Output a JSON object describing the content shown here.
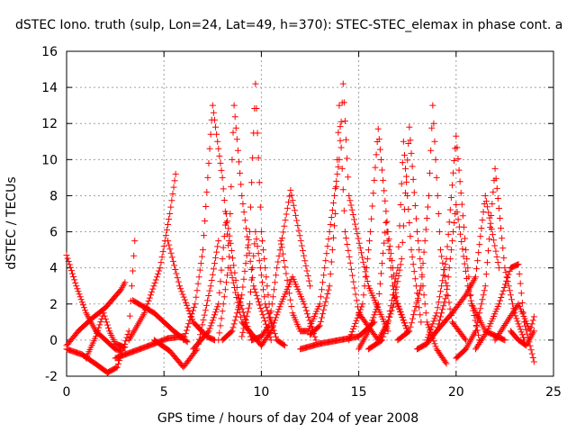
{
  "chart_data": {
    "type": "scatter",
    "title": "dSTEC Iono. truth (sulp, Lon=24, Lat=49, h=370): STEC-STEC_elemax in phase cont. a",
    "xlabel": "GPS time / hours of day 204 of year 2008",
    "ylabel": "dSTEC  / TECUs",
    "xlim": [
      0,
      25
    ],
    "ylim": [
      -2,
      16
    ],
    "x_ticks": [
      "0",
      "5",
      "10",
      "15",
      "20",
      "25"
    ],
    "y_ticks": [
      "-2",
      "0",
      "2",
      "4",
      "6",
      "8",
      "10",
      "12",
      "14",
      "16"
    ],
    "grid": true,
    "marker": "+",
    "color": "#ff0000",
    "series": [
      {
        "x": [
          0.0,
          0.5,
          1.0,
          1.5,
          2.0,
          2.5,
          2.8
        ],
        "y": [
          4.7,
          3.0,
          1.5,
          0.5,
          0.0,
          -0.5,
          -0.6
        ]
      },
      {
        "x": [
          0.0,
          0.8,
          1.6,
          2.1,
          2.6,
          3.2,
          3.5
        ],
        "y": [
          -0.5,
          -0.8,
          -1.4,
          -1.8,
          -1.5,
          0.5,
          5.5
        ]
      },
      {
        "x": [
          0.0,
          0.6,
          1.3,
          2.0,
          2.8,
          3.0
        ],
        "y": [
          -0.3,
          0.5,
          1.2,
          1.8,
          2.8,
          3.2
        ]
      },
      {
        "x": [
          1.0,
          1.5,
          1.9,
          2.2,
          2.5,
          3.0
        ],
        "y": [
          -1.0,
          0.2,
          1.5,
          0.5,
          -0.2,
          -0.4
        ]
      },
      {
        "x": [
          2.5,
          3.5,
          4.5,
          5.2,
          6.0
        ],
        "y": [
          -1.0,
          -0.6,
          -0.2,
          0.1,
          0.2
        ]
      },
      {
        "x": [
          3.4,
          4.5,
          5.5,
          6.2
        ],
        "y": [
          2.2,
          1.5,
          0.5,
          -0.1
        ]
      },
      {
        "x": [
          3.2,
          4.0,
          4.8,
          5.3,
          5.6
        ],
        "y": [
          0.0,
          1.5,
          4.0,
          7.0,
          9.2
        ]
      },
      {
        "x": [
          4.5,
          5.3,
          6.0,
          6.7,
          7.4,
          7.8
        ],
        "y": [
          0.0,
          -0.6,
          -1.5,
          -0.5,
          3.0,
          5.5
        ]
      },
      {
        "x": [
          5.2,
          5.8,
          6.5,
          7.2,
          7.6
        ],
        "y": [
          5.5,
          3.0,
          1.0,
          0.2,
          0.0
        ]
      },
      {
        "x": [
          6.0,
          6.6,
          7.0,
          7.5,
          8.0,
          8.4,
          9.0,
          10.0
        ],
        "y": [
          0.0,
          2.0,
          5.0,
          13.0,
          9.0,
          4.0,
          1.0,
          -0.3
        ]
      },
      {
        "x": [
          6.5,
          7.3,
          7.8,
          8.2,
          8.8,
          9.5
        ],
        "y": [
          -0.5,
          0.5,
          2.0,
          7.0,
          2.5,
          0.0
        ]
      },
      {
        "x": [
          7.8,
          8.3,
          8.6,
          9.0,
          9.6,
          10.5
        ],
        "y": [
          0.0,
          4.0,
          13.0,
          8.0,
          3.0,
          0.0
        ]
      },
      {
        "x": [
          8.0,
          8.5,
          9.0,
          9.4,
          9.7,
          10.0,
          10.5
        ],
        "y": [
          0.0,
          0.5,
          2.5,
          6.0,
          14.2,
          6.0,
          1.0
        ]
      },
      {
        "x": [
          9.0,
          9.4,
          9.7,
          10.2,
          10.8,
          11.2
        ],
        "y": [
          0.2,
          2.0,
          6.0,
          2.0,
          0.0,
          -0.3
        ]
      },
      {
        "x": [
          9.5,
          10.0,
          10.4,
          10.8,
          11.5,
          12.5
        ],
        "y": [
          0.0,
          0.2,
          0.8,
          4.0,
          8.3,
          3.0
        ]
      },
      {
        "x": [
          10.0,
          10.5,
          11.0,
          11.6,
          12.2,
          12.8
        ],
        "y": [
          -0.3,
          0.5,
          2.0,
          3.5,
          2.0,
          0.0
        ]
      },
      {
        "x": [
          11.0,
          11.6,
          12.0,
          12.4,
          13.0,
          13.5,
          14.0,
          14.2,
          14.5,
          15.5,
          16.5
        ],
        "y": [
          5.5,
          1.5,
          0.5,
          0.5,
          2.0,
          6.0,
          10.0,
          14.2,
          8.0,
          3.0,
          0.5
        ]
      },
      {
        "x": [
          12.5,
          13.0,
          13.5,
          13.8,
          14.0,
          14.3,
          15.0,
          16.0
        ],
        "y": [
          0.3,
          0.8,
          3.0,
          7.0,
          13.0,
          6.0,
          1.5,
          0.0
        ]
      },
      {
        "x": [
          12.0,
          13.0,
          14.0,
          15.0,
          15.8
        ],
        "y": [
          -0.5,
          -0.2,
          0.0,
          0.2,
          1.0
        ]
      },
      {
        "x": [
          14.5,
          15.2,
          15.6,
          16.0,
          16.5,
          17.0,
          17.5
        ],
        "y": [
          0.0,
          2.0,
          6.0,
          11.7,
          6.0,
          2.0,
          0.5
        ]
      },
      {
        "x": [
          15.0,
          15.5,
          16.0,
          16.4,
          16.8,
          17.5
        ],
        "y": [
          -0.5,
          0.5,
          2.0,
          6.5,
          2.5,
          0.5
        ]
      },
      {
        "x": [
          15.5,
          16.2,
          16.8,
          17.2,
          17.6,
          18.0,
          18.5,
          19.0,
          19.5
        ],
        "y": [
          -0.5,
          0.0,
          2.0,
          4.5,
          11.8,
          6.0,
          1.0,
          -0.5,
          -1.3
        ]
      },
      {
        "x": [
          16.0,
          16.5,
          17.0,
          17.3,
          17.7,
          18.2
        ],
        "y": [
          0.0,
          1.0,
          4.0,
          11.0,
          5.0,
          1.0
        ]
      },
      {
        "x": [
          17.0,
          17.6,
          18.2,
          18.6,
          18.8,
          19.2,
          19.8,
          20.5
        ],
        "y": [
          0.0,
          0.5,
          3.0,
          8.0,
          13.0,
          5.0,
          1.0,
          0.0
        ]
      },
      {
        "x": [
          18.0,
          18.5,
          19.0,
          19.5,
          20.0,
          20.6,
          21.2
        ],
        "y": [
          -0.5,
          -0.2,
          0.5,
          2.5,
          7.5,
          3.0,
          0.0
        ]
      },
      {
        "x": [
          18.5,
          19.0,
          19.5,
          20.0,
          20.5,
          20.8,
          21.5,
          22.5
        ],
        "y": [
          0.0,
          1.5,
          4.5,
          11.3,
          5.0,
          2.0,
          0.5,
          0.0
        ]
      },
      {
        "x": [
          19.0,
          19.8,
          20.5,
          21.0,
          21.5,
          22.2
        ],
        "y": [
          0.5,
          1.5,
          2.5,
          3.5,
          8.0,
          4.0
        ]
      },
      {
        "x": [
          20.0,
          20.5,
          21.0,
          21.5,
          22.0,
          22.5,
          23.0,
          23.5
        ],
        "y": [
          -1.0,
          -0.5,
          0.5,
          3.0,
          9.5,
          4.0,
          1.5,
          0.0
        ]
      },
      {
        "x": [
          21.0,
          21.6,
          22.2,
          22.8,
          23.2,
          23.5,
          24.0
        ],
        "y": [
          -0.5,
          0.5,
          2.0,
          4.0,
          4.2,
          1.0,
          -1.2
        ]
      },
      {
        "x": [
          22.0,
          22.6,
          23.2,
          23.8,
          24.0
        ],
        "y": [
          0.0,
          1.0,
          2.0,
          0.5,
          1.3
        ]
      },
      {
        "x": [
          22.8,
          23.2,
          23.6,
          24.0
        ],
        "y": [
          0.5,
          0.0,
          -0.3,
          0.5
        ]
      }
    ]
  }
}
